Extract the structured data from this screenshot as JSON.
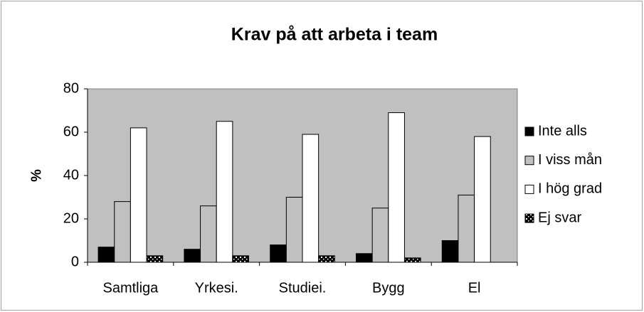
{
  "chart_data": {
    "type": "bar",
    "title": "Krav på att arbeta i team",
    "y_label": "%",
    "categories": [
      "Samtliga",
      "Yrkesi.",
      "Studiei.",
      "Bygg",
      "El"
    ],
    "series": [
      {
        "name": "Inte alls",
        "color": "#000000",
        "values": [
          7,
          6,
          8,
          4,
          10
        ]
      },
      {
        "name": "I viss mån",
        "color": "#c0c0c0",
        "values": [
          28,
          26,
          30,
          25,
          31
        ]
      },
      {
        "name": "I hög grad",
        "color": "#ffffff",
        "values": [
          62,
          65,
          59,
          69,
          58
        ]
      },
      {
        "name": "Ej svar",
        "color": "#000000",
        "pattern": "dots",
        "values": [
          3,
          3,
          3,
          2,
          null
        ]
      }
    ],
    "ylim": [
      0,
      80
    ],
    "yticks": [
      0,
      20,
      40,
      60,
      80
    ],
    "grid": false,
    "legend": "right",
    "plot_background": "#c0c0c0"
  }
}
